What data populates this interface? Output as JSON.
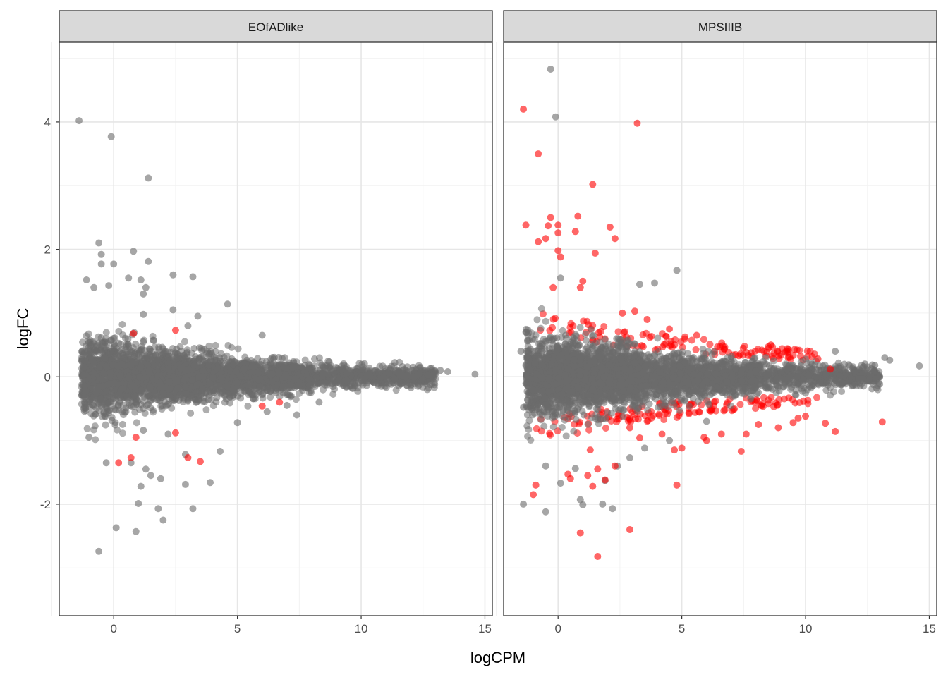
{
  "chart_data": {
    "type": "scatter",
    "xlabel": "logCPM",
    "ylabel": "logFC",
    "xlim": [
      -2.2,
      15.3
    ],
    "ylim": [
      -3.75,
      5.25
    ],
    "x_ticks": [
      0,
      5,
      10,
      15
    ],
    "x_tick_labels": [
      "0",
      "5",
      "10",
      "15"
    ],
    "y_ticks": [
      -2,
      0,
      2,
      4
    ],
    "y_tick_labels": [
      "-2",
      "0",
      "2",
      "4"
    ],
    "grid": true,
    "colors": {
      "not_significant": "#6b6b6b",
      "significant": "#ff0000",
      "strip_fill": "#d9d9d9"
    },
    "panels": [
      {
        "title": "EOfADlike",
        "notes": "dense funnel of ~20000 grey points centred at logFC 0 narrowing as logCPM increases; listed outliers below",
        "outliers_grey": [
          [
            -1.4,
            4.02
          ],
          [
            -0.1,
            3.77
          ],
          [
            1.4,
            3.12
          ],
          [
            -0.6,
            2.1
          ],
          [
            -0.5,
            1.92
          ],
          [
            0.8,
            1.97
          ],
          [
            1.4,
            1.81
          ],
          [
            -0.5,
            1.77
          ],
          [
            0.0,
            1.77
          ],
          [
            2.4,
            1.6
          ],
          [
            3.2,
            1.57
          ],
          [
            -1.1,
            1.52
          ],
          [
            0.6,
            1.55
          ],
          [
            1.1,
            1.52
          ],
          [
            1.3,
            1.4
          ],
          [
            -0.2,
            1.43
          ],
          [
            -0.8,
            1.4
          ],
          [
            1.2,
            1.3
          ],
          [
            4.6,
            1.14
          ],
          [
            2.4,
            1.05
          ],
          [
            3.4,
            0.95
          ],
          [
            1.2,
            0.98
          ],
          [
            3.0,
            0.8
          ],
          [
            -1.0,
            -0.95
          ],
          [
            0.7,
            -1.35
          ],
          [
            -0.3,
            -1.35
          ],
          [
            1.3,
            -1.45
          ],
          [
            4.3,
            -1.17
          ],
          [
            2.9,
            -1.22
          ],
          [
            1.5,
            -1.55
          ],
          [
            1.9,
            -1.6
          ],
          [
            3.9,
            -1.66
          ],
          [
            1.1,
            -1.72
          ],
          [
            2.9,
            -1.69
          ],
          [
            1.0,
            -1.99
          ],
          [
            1.8,
            -2.07
          ],
          [
            2.0,
            -2.25
          ],
          [
            3.2,
            -2.07
          ],
          [
            0.1,
            -2.37
          ],
          [
            0.9,
            -2.43
          ],
          [
            -0.6,
            -2.74
          ],
          [
            1.2,
            -0.84
          ],
          [
            2.2,
            -0.9
          ],
          [
            5.0,
            -0.72
          ],
          [
            6.2,
            -0.55
          ],
          [
            6.0,
            0.65
          ],
          [
            7.0,
            -0.45
          ],
          [
            7.4,
            -0.6
          ],
          [
            8.3,
            -0.4
          ],
          [
            12.8,
            0.13
          ],
          [
            13.2,
            0.1
          ],
          [
            13.5,
            0.08
          ],
          [
            14.6,
            0.04
          ],
          [
            11.8,
            -0.05
          ],
          [
            12.4,
            -0.08
          ]
        ],
        "red_points": [
          [
            0.7,
            -1.27
          ],
          [
            0.2,
            -1.35
          ],
          [
            2.5,
            -0.88
          ],
          [
            3.5,
            -1.33
          ],
          [
            3.0,
            -1.27
          ],
          [
            6.7,
            -0.4
          ],
          [
            6.0,
            -0.46
          ],
          [
            0.9,
            -0.95
          ],
          [
            2.5,
            0.73
          ],
          [
            0.8,
            0.68
          ]
        ]
      },
      {
        "title": "MPSIIIB",
        "notes": "dense funnel of grey points with many red (significant) points along the funnel edges; listed outliers below",
        "outliers_grey": [
          [
            -0.3,
            4.83
          ],
          [
            -0.1,
            4.08
          ],
          [
            4.8,
            1.67
          ],
          [
            3.3,
            1.45
          ],
          [
            3.9,
            1.47
          ],
          [
            0.1,
            1.55
          ],
          [
            -1.4,
            -2.0
          ],
          [
            -0.5,
            -2.12
          ],
          [
            0.1,
            -1.67
          ],
          [
            0.9,
            -1.93
          ],
          [
            1.0,
            -2.01
          ],
          [
            1.8,
            -2.0
          ],
          [
            2.2,
            -2.07
          ],
          [
            1.9,
            -1.63
          ],
          [
            2.4,
            -1.4
          ],
          [
            2.9,
            -1.27
          ],
          [
            0.7,
            -1.44
          ],
          [
            -0.5,
            -1.4
          ],
          [
            11.2,
            0.4
          ],
          [
            12.4,
            0.2
          ],
          [
            12.8,
            0.18
          ],
          [
            13.2,
            0.3
          ],
          [
            13.4,
            0.26
          ],
          [
            14.6,
            0.17
          ],
          [
            12.0,
            -0.12
          ],
          [
            11.5,
            -0.1
          ],
          [
            -1.5,
            0.4
          ],
          [
            -1.4,
            -0.48
          ],
          [
            -1.3,
            0.7
          ],
          [
            4.5,
            -1.0
          ],
          [
            3.5,
            -1.12
          ],
          [
            6.0,
            -0.7
          ]
        ],
        "red_points": [
          [
            -1.4,
            4.2
          ],
          [
            3.2,
            3.98
          ],
          [
            -0.8,
            3.5
          ],
          [
            1.4,
            3.02
          ],
          [
            -1.3,
            2.38
          ],
          [
            -0.4,
            2.37
          ],
          [
            -0.3,
            2.5
          ],
          [
            0.0,
            2.38
          ],
          [
            0.0,
            2.26
          ],
          [
            0.7,
            2.28
          ],
          [
            2.1,
            2.35
          ],
          [
            2.3,
            2.17
          ],
          [
            -0.8,
            2.12
          ],
          [
            0.0,
            1.98
          ],
          [
            0.1,
            1.88
          ],
          [
            1.5,
            1.94
          ],
          [
            -0.5,
            2.17
          ],
          [
            0.8,
            2.52
          ],
          [
            1.0,
            1.5
          ],
          [
            0.9,
            1.4
          ],
          [
            -0.2,
            1.4
          ],
          [
            2.6,
            1.0
          ],
          [
            3.1,
            1.03
          ],
          [
            3.6,
            0.9
          ],
          [
            4.5,
            0.75
          ],
          [
            5.6,
            0.65
          ],
          [
            8.6,
            0.5
          ],
          [
            9.3,
            0.3
          ],
          [
            10.5,
            0.28
          ],
          [
            11.0,
            0.12
          ],
          [
            -0.9,
            -1.7
          ],
          [
            -1.0,
            -1.85
          ],
          [
            0.4,
            -1.53
          ],
          [
            0.5,
            -1.6
          ],
          [
            1.2,
            -1.55
          ],
          [
            1.4,
            -1.72
          ],
          [
            1.6,
            -1.45
          ],
          [
            1.9,
            -1.62
          ],
          [
            2.3,
            -1.4
          ],
          [
            0.9,
            -2.45
          ],
          [
            2.9,
            -2.4
          ],
          [
            1.6,
            -2.82
          ],
          [
            4.8,
            -1.7
          ],
          [
            4.7,
            -1.15
          ],
          [
            5.0,
            -1.12
          ],
          [
            5.9,
            -0.95
          ],
          [
            6.0,
            -1.0
          ],
          [
            7.4,
            -1.17
          ],
          [
            8.9,
            -0.8
          ],
          [
            9.5,
            -0.72
          ],
          [
            9.7,
            -0.65
          ],
          [
            10.0,
            -0.62
          ],
          [
            10.8,
            -0.73
          ],
          [
            11.2,
            -0.86
          ],
          [
            13.1,
            -0.71
          ],
          [
            6.6,
            -0.9
          ],
          [
            7.6,
            -0.9
          ],
          [
            8.1,
            -0.75
          ],
          [
            3.3,
            -0.96
          ],
          [
            2.9,
            -0.8
          ],
          [
            4.2,
            -0.9
          ],
          [
            1.3,
            -1.15
          ]
        ]
      }
    ]
  }
}
